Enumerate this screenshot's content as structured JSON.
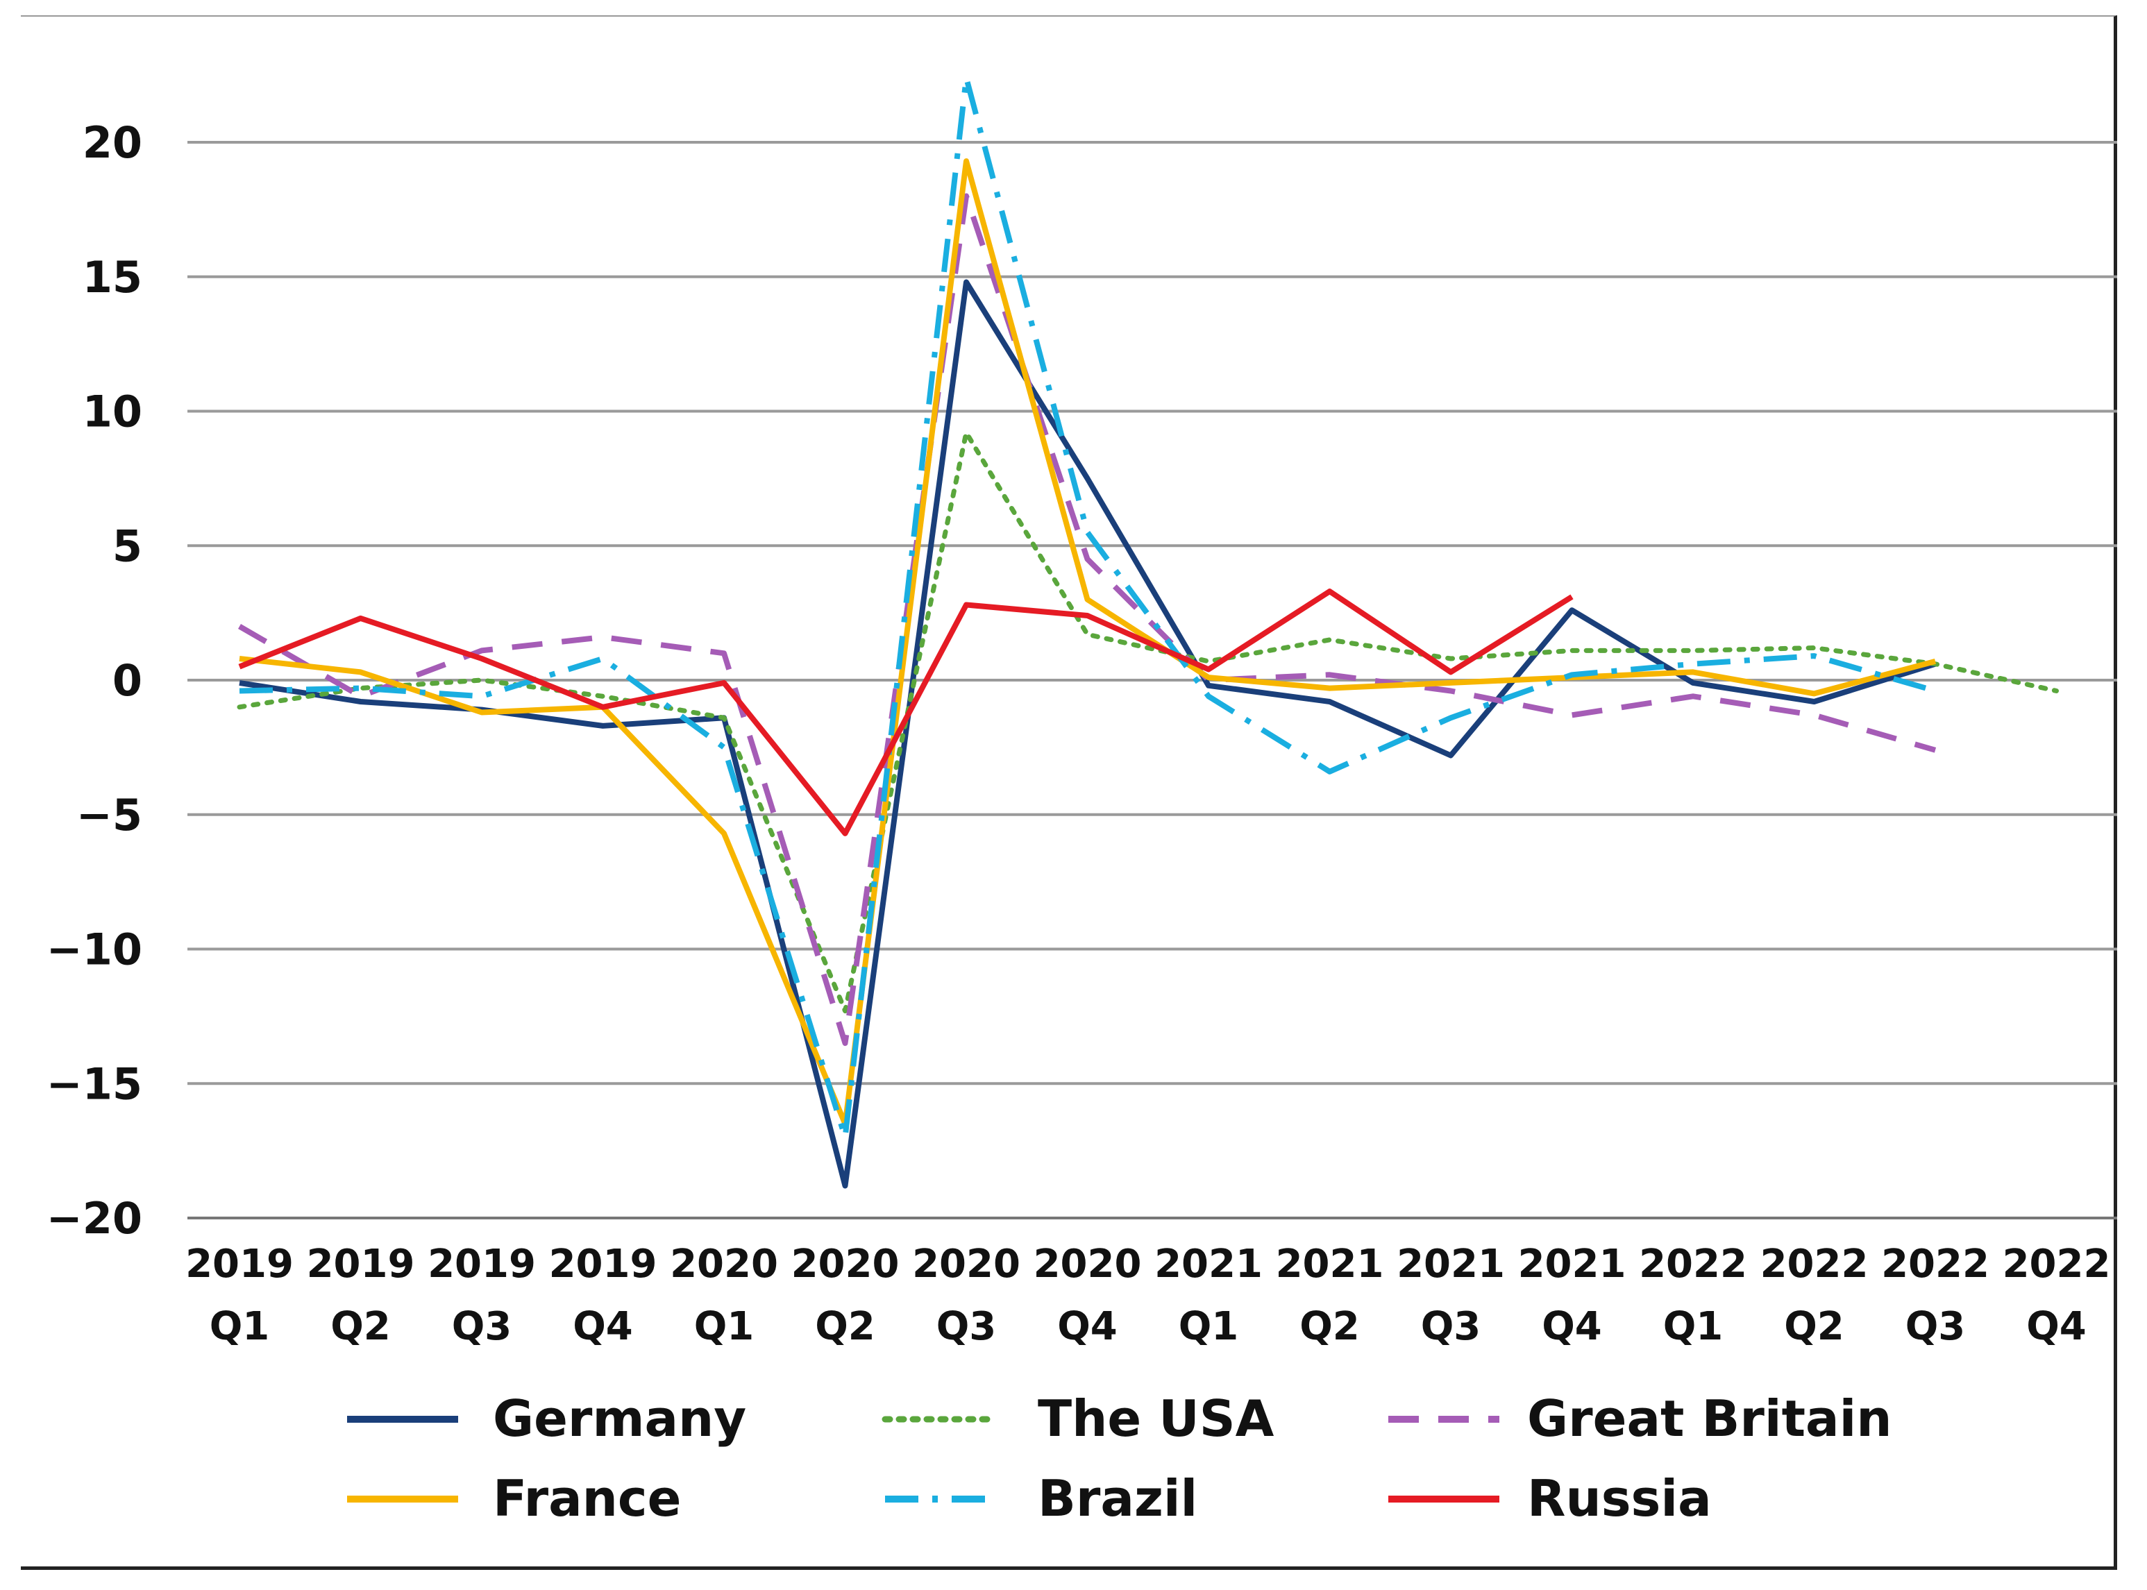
{
  "chart_data": {
    "type": "line",
    "title": "",
    "xlabel": "",
    "ylabel": "",
    "ylim": [
      -20,
      22
    ],
    "yticks": [
      20,
      15,
      10,
      5,
      0,
      -5,
      -10,
      -15,
      -20
    ],
    "ytick_labels": [
      "20",
      "15",
      "10",
      "5",
      "0",
      "−5",
      "−10",
      "−15",
      "−20"
    ],
    "categories": [
      [
        "2019",
        "Q1"
      ],
      [
        "2019",
        "Q2"
      ],
      [
        "2019",
        "Q3"
      ],
      [
        "2019",
        "Q4"
      ],
      [
        "2020",
        "Q1"
      ],
      [
        "2020",
        "Q2"
      ],
      [
        "2020",
        "Q3"
      ],
      [
        "2020",
        "Q4"
      ],
      [
        "2021",
        "Q1"
      ],
      [
        "2021",
        "Q2"
      ],
      [
        "2021",
        "Q3"
      ],
      [
        "2021",
        "Q4"
      ],
      [
        "2022",
        "Q1"
      ],
      [
        "2022",
        "Q2"
      ],
      [
        "2022",
        "Q3"
      ],
      [
        "2022",
        "Q4"
      ]
    ],
    "grid": true,
    "legend_position": "bottom",
    "series": [
      {
        "name": "Germany",
        "color": "#1a3f7a",
        "style": "solid",
        "values": [
          -0.1,
          -0.8,
          -1.1,
          -1.7,
          -1.4,
          -18.8,
          14.8,
          7.5,
          -0.2,
          -0.8,
          -2.8,
          2.6,
          -0.1,
          -0.8,
          0.6,
          null
        ]
      },
      {
        "name": "The USA",
        "color": "#5aa63c",
        "style": "dotted",
        "values": [
          -1.0,
          -0.3,
          0.0,
          -0.6,
          -1.4,
          -12.3,
          9.2,
          1.7,
          0.7,
          1.5,
          0.8,
          1.1,
          1.1,
          1.2,
          0.6,
          -0.4
        ]
      },
      {
        "name": "Great Britain",
        "color": "#a55cb6",
        "style": "dashed",
        "values": [
          2.0,
          -0.6,
          1.1,
          1.6,
          1.0,
          -13.5,
          18.0,
          4.5,
          0.0,
          0.2,
          -0.4,
          -1.3,
          -0.6,
          -1.3,
          -2.6,
          null
        ]
      },
      {
        "name": "France",
        "color": "#f7b500",
        "style": "solid",
        "values": [
          0.8,
          0.3,
          -1.2,
          -1.0,
          -5.7,
          -16.5,
          19.3,
          3.0,
          0.1,
          -0.3,
          -0.1,
          0.1,
          0.3,
          -0.5,
          0.7,
          null
        ]
      },
      {
        "name": "Brazil",
        "color": "#1aaee0",
        "style": "dashdot",
        "values": [
          -0.4,
          -0.3,
          -0.6,
          0.8,
          -2.5,
          -17.0,
          22.4,
          5.5,
          -0.6,
          -3.4,
          -1.4,
          0.2,
          0.6,
          0.9,
          -0.4,
          null
        ]
      },
      {
        "name": "Russia",
        "color": "#e51b24",
        "style": "solid",
        "values": [
          0.5,
          2.3,
          0.8,
          -1.0,
          -0.1,
          -5.7,
          2.8,
          2.4,
          0.4,
          3.3,
          0.3,
          3.1,
          null,
          null,
          null,
          null
        ]
      }
    ]
  }
}
